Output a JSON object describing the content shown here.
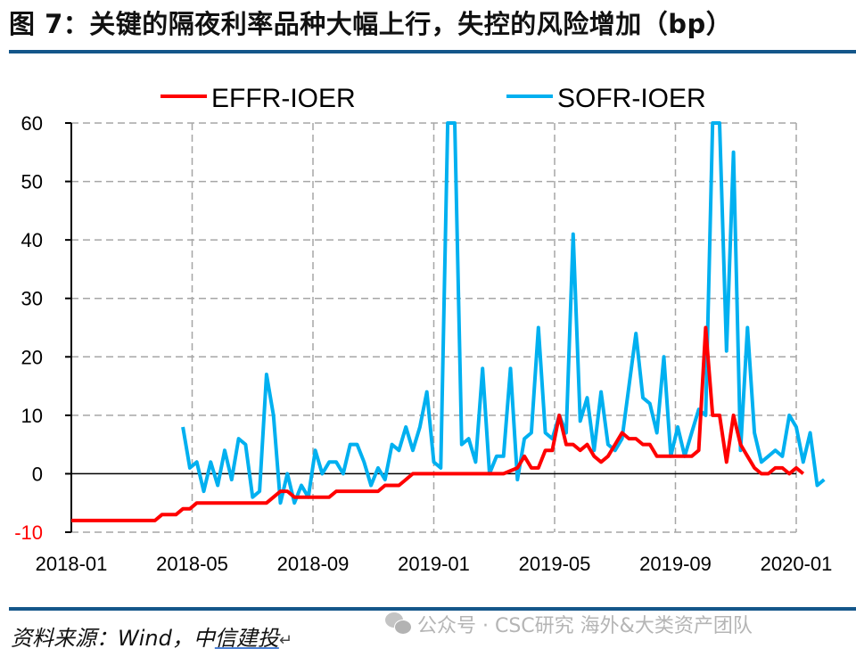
{
  "header": {
    "title": "图 7：关键的隔夜利率品种大幅上行，失控的风险增加（bp）"
  },
  "footer": {
    "source_prefix": "资料来源：Wind，中",
    "source_underlined": "信建投",
    "watermark": "公众号 · CSC研究 海外&大类资产团队"
  },
  "colors": {
    "effr": "#ff0000",
    "sofr": "#00b0f0",
    "rule": "#14568a",
    "grid": "#a6a6a6",
    "negative_tick": "#ff0000"
  },
  "chart_data": {
    "type": "line",
    "title": "关键的隔夜利率品种大幅上行，失控的风险增加（bp）",
    "xlabel": "",
    "ylabel": "bp",
    "ylim": [
      -10,
      60
    ],
    "yticks": [
      -10,
      0,
      10,
      20,
      30,
      40,
      50,
      60
    ],
    "xlim": [
      "2018-01",
      "2020-01"
    ],
    "xticks": [
      "2018-01",
      "2018-05",
      "2018-09",
      "2019-01",
      "2019-05",
      "2019-09",
      "2020-01"
    ],
    "grid": true,
    "legend_position": "top",
    "legend": [
      "EFFR-IOER",
      "SOFR-IOER"
    ],
    "x_unit": "week index from 2018-01 (0) to 2020-01 (104)",
    "series": [
      {
        "name": "EFFR-IOER",
        "color": "#ff0000",
        "points": [
          [
            0,
            -8
          ],
          [
            4,
            -8
          ],
          [
            8,
            -8
          ],
          [
            12,
            -8
          ],
          [
            13,
            -7
          ],
          [
            15,
            -7
          ],
          [
            16,
            -6
          ],
          [
            17,
            -6
          ],
          [
            18,
            -5
          ],
          [
            20,
            -5
          ],
          [
            24,
            -5
          ],
          [
            28,
            -5
          ],
          [
            29,
            -4
          ],
          [
            30,
            -3
          ],
          [
            31,
            -3
          ],
          [
            32,
            -4
          ],
          [
            36,
            -4
          ],
          [
            37,
            -4
          ],
          [
            38,
            -3
          ],
          [
            42,
            -3
          ],
          [
            44,
            -3
          ],
          [
            45,
            -2
          ],
          [
            47,
            -2
          ],
          [
            48,
            -1
          ],
          [
            49,
            0
          ],
          [
            52,
            0
          ],
          [
            56,
            0
          ],
          [
            60,
            0
          ],
          [
            62,
            0
          ],
          [
            63,
            0.5
          ],
          [
            64,
            1
          ],
          [
            65,
            3
          ],
          [
            66,
            1
          ],
          [
            67,
            1
          ],
          [
            68,
            4
          ],
          [
            69,
            4
          ],
          [
            70,
            10
          ],
          [
            71,
            5
          ],
          [
            72,
            5
          ],
          [
            73,
            4
          ],
          [
            74,
            5
          ],
          [
            75,
            3
          ],
          [
            76,
            2
          ],
          [
            77,
            3
          ],
          [
            78,
            5
          ],
          [
            79,
            7
          ],
          [
            80,
            6
          ],
          [
            81,
            6
          ],
          [
            82,
            5
          ],
          [
            83,
            5
          ],
          [
            84,
            3
          ],
          [
            86,
            3
          ],
          [
            88,
            3
          ],
          [
            89,
            3
          ],
          [
            90,
            4
          ],
          [
            91,
            25
          ],
          [
            92,
            10
          ],
          [
            93,
            10
          ],
          [
            94,
            2
          ],
          [
            95,
            10
          ],
          [
            96,
            5
          ],
          [
            97,
            3
          ],
          [
            98,
            1
          ],
          [
            99,
            0
          ],
          [
            100,
            0
          ],
          [
            101,
            1
          ],
          [
            102,
            1
          ],
          [
            103,
            0
          ],
          [
            104,
            1
          ],
          [
            105,
            0
          ]
        ]
      },
      {
        "name": "SOFR-IOER",
        "color": "#00b0f0",
        "points": [
          [
            16,
            8
          ],
          [
            17,
            1
          ],
          [
            18,
            2
          ],
          [
            19,
            -3
          ],
          [
            20,
            2
          ],
          [
            21,
            -2
          ],
          [
            22,
            4
          ],
          [
            23,
            -1
          ],
          [
            24,
            6
          ],
          [
            25,
            5
          ],
          [
            26,
            -4
          ],
          [
            27,
            -3
          ],
          [
            28,
            17
          ],
          [
            29,
            10
          ],
          [
            30,
            -5
          ],
          [
            31,
            0
          ],
          [
            32,
            -5
          ],
          [
            33,
            -2
          ],
          [
            34,
            -4
          ],
          [
            35,
            4
          ],
          [
            36,
            0
          ],
          [
            37,
            2
          ],
          [
            38,
            2
          ],
          [
            39,
            0
          ],
          [
            40,
            5
          ],
          [
            41,
            5
          ],
          [
            42,
            2
          ],
          [
            43,
            -2
          ],
          [
            44,
            1
          ],
          [
            45,
            -1
          ],
          [
            46,
            5
          ],
          [
            47,
            4
          ],
          [
            48,
            8
          ],
          [
            49,
            4
          ],
          [
            50,
            8
          ],
          [
            51,
            14
          ],
          [
            52,
            2
          ],
          [
            53,
            1
          ],
          [
            54,
            60
          ],
          [
            55,
            60
          ],
          [
            56,
            5
          ],
          [
            57,
            6
          ],
          [
            58,
            2
          ],
          [
            59,
            18
          ],
          [
            60,
            0
          ],
          [
            61,
            3
          ],
          [
            62,
            3
          ],
          [
            63,
            18
          ],
          [
            64,
            -1
          ],
          [
            65,
            6
          ],
          [
            66,
            7
          ],
          [
            67,
            25
          ],
          [
            68,
            7
          ],
          [
            69,
            6
          ],
          [
            70,
            10
          ],
          [
            71,
            7
          ],
          [
            72,
            41
          ],
          [
            73,
            9
          ],
          [
            74,
            13
          ],
          [
            75,
            4
          ],
          [
            76,
            14
          ],
          [
            77,
            5
          ],
          [
            78,
            4
          ],
          [
            79,
            6
          ],
          [
            80,
            15
          ],
          [
            81,
            24
          ],
          [
            82,
            13
          ],
          [
            83,
            12
          ],
          [
            84,
            7
          ],
          [
            85,
            20
          ],
          [
            86,
            3
          ],
          [
            87,
            8
          ],
          [
            88,
            3
          ],
          [
            89,
            7
          ],
          [
            90,
            11
          ],
          [
            91,
            10
          ],
          [
            92,
            60
          ],
          [
            93,
            60
          ],
          [
            94,
            21
          ],
          [
            95,
            55
          ],
          [
            96,
            4
          ],
          [
            97,
            25
          ],
          [
            98,
            7
          ],
          [
            99,
            2
          ],
          [
            100,
            3
          ],
          [
            101,
            4
          ],
          [
            102,
            3
          ],
          [
            103,
            10
          ],
          [
            104,
            8
          ],
          [
            105,
            2
          ],
          [
            106,
            7
          ],
          [
            107,
            -2
          ],
          [
            108,
            -1
          ]
        ]
      }
    ]
  }
}
